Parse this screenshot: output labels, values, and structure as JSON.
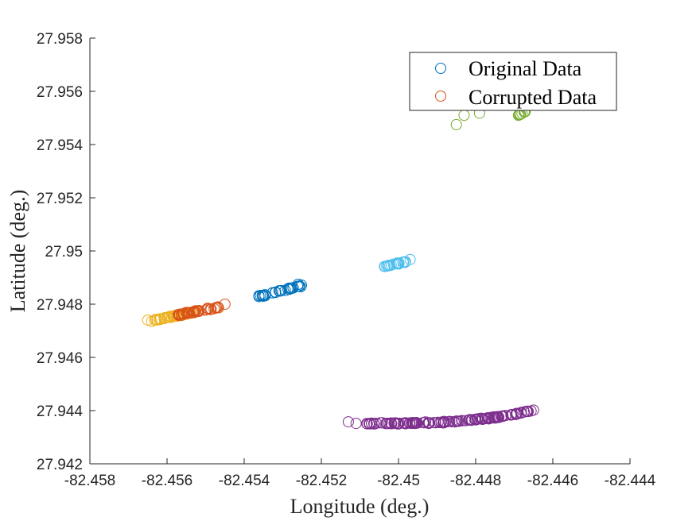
{
  "chart_data": {
    "type": "scatter",
    "title": "",
    "xlabel": "Longitude (deg.)",
    "ylabel": "Latitude (deg.)",
    "xlim": [
      -82.458,
      -82.444
    ],
    "ylim": [
      27.942,
      27.958
    ],
    "xticks": [
      -82.458,
      -82.456,
      -82.454,
      -82.452,
      -82.45,
      -82.448,
      -82.446,
      -82.444
    ],
    "xtick_labels": [
      "-82.458",
      "-82.456",
      "-82.454",
      "-82.452",
      "-82.45",
      "-82.448",
      "-82.446",
      "-82.444"
    ],
    "yticks": [
      27.942,
      27.944,
      27.946,
      27.948,
      27.95,
      27.952,
      27.954,
      27.956,
      27.958
    ],
    "ytick_labels": [
      "27.942",
      "27.944",
      "27.946",
      "27.948",
      "27.95",
      "27.952",
      "27.954",
      "27.956",
      "27.958"
    ],
    "grid": false,
    "marker": "open-circle",
    "legend": {
      "position": "top-right",
      "entries": [
        {
          "label": "Original Data",
          "color": "#0072BD"
        },
        {
          "label": "Corrupted Data",
          "color": "#D95319"
        }
      ]
    },
    "clusters": [
      {
        "color": "#EDB120",
        "from": [
          -82.4563,
          27.9474
        ],
        "to": [
          -82.4553,
          27.9477
        ],
        "n": 45,
        "spread": [
          7e-05,
          4e-05
        ],
        "outliers": [
          [
            -82.4565,
            27.9474
          ],
          [
            -82.4564,
            27.94735
          ]
        ]
      },
      {
        "color": "#D95319",
        "from": [
          -82.4557,
          27.9476
        ],
        "to": [
          -82.4546,
          27.9479
        ],
        "n": 40,
        "spread": [
          7e-05,
          4e-05
        ],
        "outliers": [
          [
            -82.4545,
            27.948
          ]
        ]
      },
      {
        "color": "#0072BD",
        "from": [
          -82.4536,
          27.9483
        ],
        "to": [
          -82.4525,
          27.9487
        ],
        "n": 30,
        "spread": [
          6e-05,
          4e-05
        ],
        "outliers": [
          [
            -82.4535,
            27.9483
          ],
          [
            -82.4526,
            27.94875
          ]
        ]
      },
      {
        "color": "#4DBEEE",
        "from": [
          -82.4504,
          27.9494
        ],
        "to": [
          -82.4498,
          27.9496
        ],
        "n": 22,
        "spread": [
          4e-05,
          3e-05
        ],
        "outliers": [
          [
            -82.4497,
            27.94968
          ]
        ]
      },
      {
        "color": "#7E2F8E",
        "from": [
          -82.4508,
          27.94352
        ],
        "to": [
          -82.4465,
          27.94402
        ],
        "n": 140,
        "spread": [
          6e-05,
          4e-05
        ],
        "curve": 0.00012,
        "outliers": [
          [
            -82.4513,
            27.94358
          ],
          [
            -82.4511,
            27.94352
          ],
          [
            -82.4507,
            27.94353
          ],
          [
            -82.4465,
            27.94402
          ]
        ]
      },
      {
        "color": "#77AC30",
        "from": [
          -82.4469,
          27.9551
        ],
        "to": [
          -82.4467,
          27.95525
        ],
        "n": 10,
        "spread": [
          2e-05,
          2e-05
        ],
        "outliers": [
          [
            -82.4479,
            27.95518
          ],
          [
            -82.4483,
            27.9551
          ],
          [
            -82.4485,
            27.95475
          ]
        ]
      }
    ]
  }
}
